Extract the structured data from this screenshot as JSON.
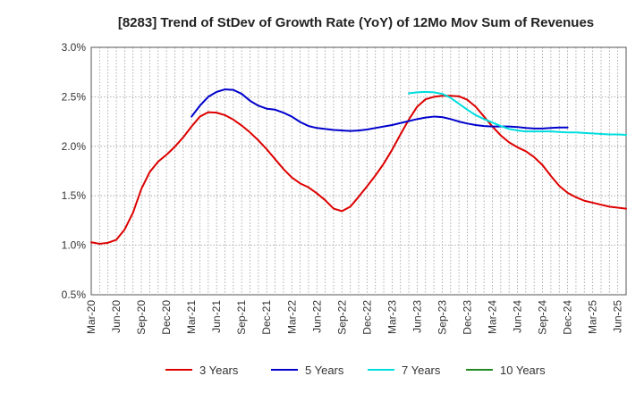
{
  "chart_data": {
    "type": "line",
    "title": "[8283]  Trend of StDev of Growth Rate (YoY) of 12Mo Mov Sum of Revenues",
    "xlabel": "",
    "ylabel": "",
    "ylim": [
      0.5,
      3.0
    ],
    "y_ticks": [
      0.5,
      1.0,
      1.5,
      2.0,
      2.5,
      3.0
    ],
    "y_tick_labels": [
      "0.5%",
      "1.0%",
      "1.5%",
      "2.0%",
      "2.5%",
      "3.0%"
    ],
    "x_tick_labels": [
      "Mar-20",
      "Jun-20",
      "Sep-20",
      "Dec-20",
      "Mar-21",
      "Jun-21",
      "Sep-21",
      "Dec-21",
      "Mar-22",
      "Jun-22",
      "Sep-22",
      "Dec-22",
      "Mar-23",
      "Jun-23",
      "Sep-23",
      "Dec-23",
      "Mar-24",
      "Jun-24",
      "Sep-24",
      "Dec-24",
      "Mar-25",
      "Jun-25"
    ],
    "x_count": 65,
    "grid": true,
    "legend_position": "bottom",
    "series": [
      {
        "name": "3 Years",
        "color": "#dd0000",
        "start": 0,
        "values": [
          1.03,
          1.015,
          1.025,
          1.055,
          1.16,
          1.33,
          1.57,
          1.74,
          1.845,
          1.915,
          1.995,
          2.09,
          2.2,
          2.3,
          2.345,
          2.34,
          2.315,
          2.27,
          2.21,
          2.14,
          2.06,
          1.97,
          1.87,
          1.77,
          1.685,
          1.625,
          1.585,
          1.525,
          1.455,
          1.37,
          1.345,
          1.39,
          1.49,
          1.595,
          1.705,
          1.825,
          1.965,
          2.12,
          2.27,
          2.4,
          2.475,
          2.5,
          2.51,
          2.51,
          2.505,
          2.47,
          2.4,
          2.3,
          2.2,
          2.11,
          2.04,
          1.99,
          1.95,
          1.89,
          1.81,
          1.7,
          1.6,
          1.53,
          1.485,
          1.45,
          1.43,
          1.41,
          1.39,
          1.38,
          1.37
        ]
      },
      {
        "name": "5 Years",
        "color": "#0000cc",
        "start": 12,
        "values": [
          2.3,
          2.41,
          2.5,
          2.55,
          2.575,
          2.57,
          2.53,
          2.46,
          2.41,
          2.38,
          2.37,
          2.34,
          2.3,
          2.245,
          2.205,
          2.185,
          2.175,
          2.165,
          2.16,
          2.155,
          2.16,
          2.17,
          2.185,
          2.2,
          2.215,
          2.235,
          2.255,
          2.275,
          2.29,
          2.3,
          2.295,
          2.275,
          2.25,
          2.23,
          2.215,
          2.205,
          2.2,
          2.2,
          2.2,
          2.195,
          2.185,
          2.18,
          2.18,
          2.185,
          2.19,
          2.19
        ]
      },
      {
        "name": "7 Years",
        "color": "#00dddd",
        "start": 38,
        "values": [
          2.535,
          2.545,
          2.55,
          2.545,
          2.53,
          2.49,
          2.43,
          2.37,
          2.315,
          2.275,
          2.24,
          2.205,
          2.175,
          2.16,
          2.15,
          2.15,
          2.15,
          2.15,
          2.145,
          2.14,
          2.14,
          2.135,
          2.13,
          2.125,
          2.12,
          2.12,
          2.115
        ]
      },
      {
        "name": "10 Years",
        "color": "#228822",
        "start": 65,
        "values": []
      }
    ]
  }
}
